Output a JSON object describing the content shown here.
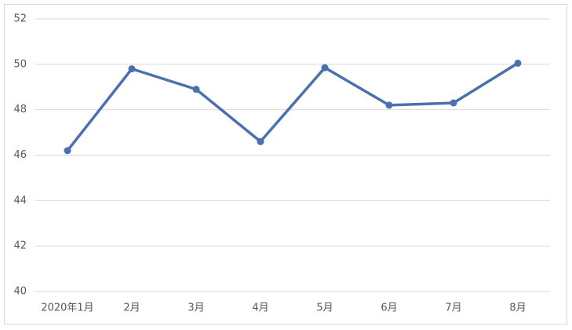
{
  "chart_data": {
    "type": "line",
    "categories": [
      "2020年1月",
      "2月",
      "3月",
      "4月",
      "5月",
      "6月",
      "7月",
      "8月"
    ],
    "series": [
      {
        "color": "#4a70b0",
        "values": [
          46.2,
          49.8,
          48.9,
          46.6,
          49.85,
          48.2,
          48.3,
          50.05
        ]
      }
    ],
    "ylim": [
      40,
      52
    ],
    "yticks": [
      40,
      42,
      44,
      46,
      48,
      50,
      52
    ],
    "grid": true
  }
}
